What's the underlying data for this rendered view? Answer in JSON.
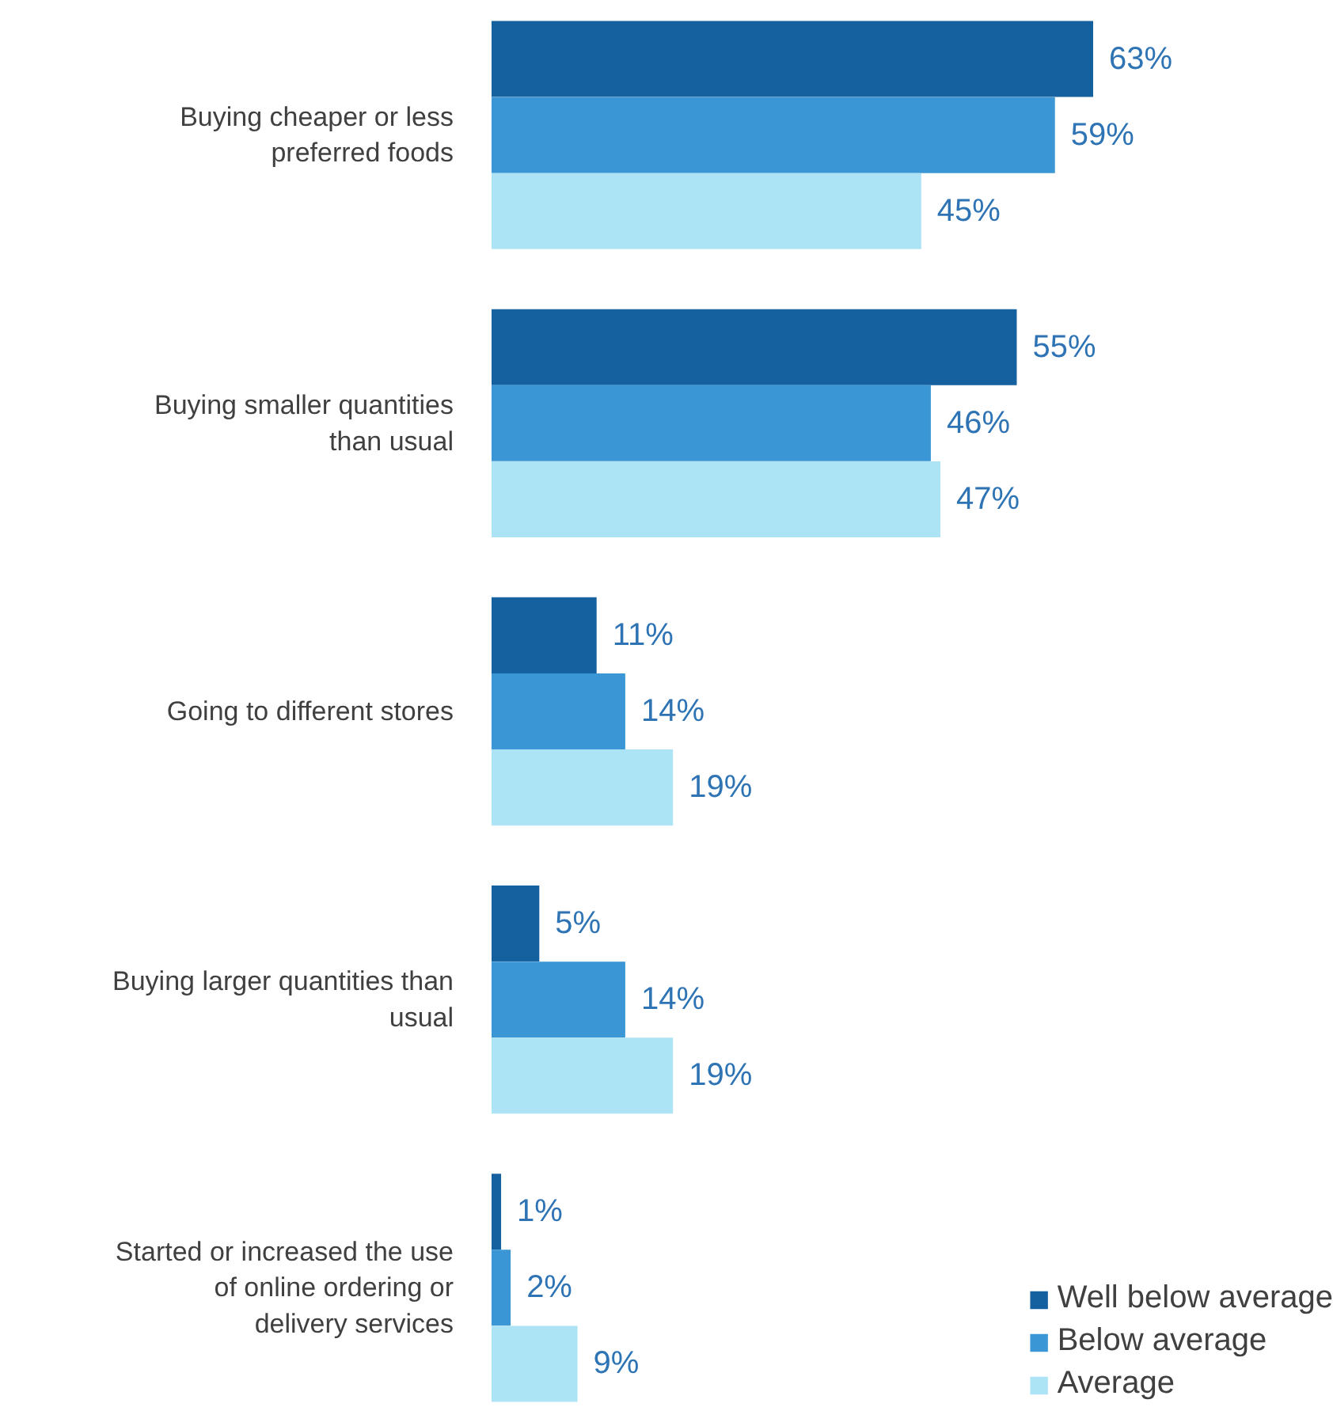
{
  "chart_data": {
    "type": "bar",
    "orientation": "horizontal",
    "categories": [
      "Buying cheaper or less\npreferred foods",
      "Buying smaller quantities\nthan usual",
      "Going to different stores",
      "Buying larger quantities than\nusual",
      "Started or increased the use\nof online ordering or\ndelivery services"
    ],
    "series": [
      {
        "name": "Well below average",
        "color": "#1561a0",
        "values": [
          63,
          55,
          11,
          5,
          1
        ],
        "value_labels": [
          "63%",
          "55%",
          "11%",
          "5%",
          "1%"
        ]
      },
      {
        "name": "Below average",
        "color": "#3a96d4",
        "values": [
          59,
          46,
          14,
          14,
          2
        ],
        "value_labels": [
          "59%",
          "46%",
          "14%",
          "14%",
          "2%"
        ]
      },
      {
        "name": "Average",
        "color": "#ade4f5",
        "values": [
          45,
          47,
          19,
          19,
          9
        ],
        "value_labels": [
          "45%",
          "47%",
          "19%",
          "19%",
          "9%"
        ]
      }
    ],
    "legend": "bottom right",
    "grid": false
  }
}
